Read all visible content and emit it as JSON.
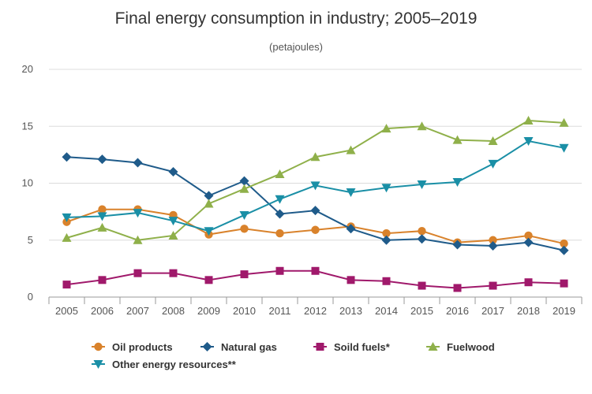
{
  "chart_data": {
    "type": "line",
    "title": "Final energy consumption in industry; 2005–2019",
    "subtitle": "(petajoules)",
    "xlabel": "",
    "ylabel": "",
    "x": [
      "2005",
      "2006",
      "2007",
      "2008",
      "2009",
      "2010",
      "2011",
      "2012",
      "2013",
      "2014",
      "2015",
      "2016",
      "2017",
      "2018",
      "2019"
    ],
    "y_ticks": [
      "0",
      "5",
      "10",
      "15",
      "20"
    ],
    "ylim": [
      0,
      20
    ],
    "grid": "horizontal",
    "legend_position": "bottom",
    "series": [
      {
        "name": "Oil products",
        "color": "#d9822b",
        "marker": "circle",
        "values": [
          6.6,
          7.7,
          7.7,
          7.2,
          5.5,
          6.0,
          5.6,
          5.9,
          6.2,
          5.6,
          5.8,
          4.8,
          5.0,
          5.4,
          4.7
        ]
      },
      {
        "name": "Natural gas",
        "color": "#1f5b8a",
        "marker": "diamond",
        "values": [
          12.3,
          12.1,
          11.8,
          11.0,
          8.9,
          10.2,
          7.3,
          7.6,
          6.0,
          5.0,
          5.1,
          4.6,
          4.5,
          4.8,
          4.1
        ]
      },
      {
        "name": "Soild fuels*",
        "color": "#a0196b",
        "marker": "square",
        "values": [
          1.1,
          1.5,
          2.1,
          2.1,
          1.5,
          2.0,
          2.3,
          2.3,
          1.5,
          1.4,
          1.0,
          0.8,
          1.0,
          1.3,
          1.2
        ]
      },
      {
        "name": "Fuelwood",
        "color": "#8fb04a",
        "marker": "triangle-up",
        "values": [
          5.2,
          6.1,
          5.0,
          5.4,
          8.2,
          9.5,
          10.8,
          12.3,
          12.9,
          14.8,
          15.0,
          13.8,
          13.7,
          15.5,
          15.3
        ]
      },
      {
        "name": "Other energy resources**",
        "color": "#1a8fa6",
        "marker": "triangle-down",
        "values": [
          7.0,
          7.1,
          7.4,
          6.7,
          5.8,
          7.2,
          8.6,
          9.8,
          9.2,
          9.6,
          9.9,
          10.1,
          11.7,
          13.7,
          13.1
        ]
      }
    ]
  }
}
